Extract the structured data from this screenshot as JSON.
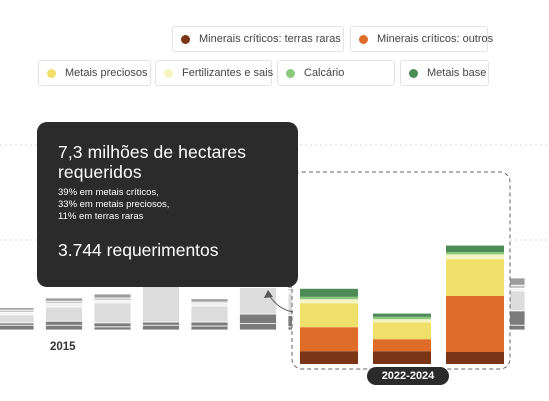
{
  "legend": {
    "items": [
      {
        "label": "Minerais críticos: terras raras",
        "color": "#7a3516"
      },
      {
        "label": "Minerais críticos: outros",
        "color": "#df6c28"
      },
      {
        "label": "Metais preciosos",
        "color": "#f0e06a"
      },
      {
        "label": "Fertilizantes e sais",
        "color": "#f5f4c2"
      },
      {
        "label": "Calcário",
        "color": "#8cc97e"
      },
      {
        "label": "Metais base",
        "color": "#4c8a56"
      }
    ]
  },
  "tooltip": {
    "area": "7,3 milhões de hectares requeridos",
    "breakdown": [
      "39% em metais críticos,",
      "33% em metais preciosos,",
      "11% em terras raras"
    ],
    "requests": "3.744 requerimentos"
  },
  "chart_data": {
    "type": "bar",
    "stacked": true,
    "tick_labels": [
      "2015"
    ],
    "highlight_label": "2022-2024",
    "series": [
      {
        "name": "Minerais críticos: terras raras",
        "color": "#7a3516",
        "values": [
          0.6,
          0.6,
          0.4,
          0.6,
          0.5,
          0.8,
          0.4,
          0.3,
          0.4,
          1.6,
          1.6,
          1.5,
          0.6
        ]
      },
      {
        "name": "Minerais críticos: outros",
        "color": "#df6c28",
        "values": [
          0.3,
          0.5,
          0.5,
          0.4,
          0.5,
          1.2,
          1.4,
          1.5,
          1.8,
          3.0,
          1.5,
          7.0,
          1.8
        ]
      },
      {
        "name": "Metais preciosos",
        "color": "#f0e06a",
        "values": [
          1.0,
          1.8,
          2.5,
          4.5,
          2.0,
          3.3,
          2.8,
          2.5,
          3.0,
          3.0,
          2.1,
          4.6,
          2.5
        ]
      },
      {
        "name": "Fertilizantes e sais",
        "color": "#f5f4c2",
        "values": [
          0.3,
          0.4,
          0.3,
          0.3,
          0.3,
          0.4,
          0.3,
          0.3,
          0.4,
          0.5,
          0.4,
          0.6,
          0.3
        ]
      },
      {
        "name": "Calcário",
        "color": "#8cc97e",
        "values": [
          0.3,
          0.3,
          0.3,
          0.3,
          0.2,
          0.4,
          0.3,
          0.4,
          0.5,
          0.3,
          0.3,
          0.3,
          0.4
        ]
      },
      {
        "name": "Metais base",
        "color": "#4c8a56",
        "values": [
          0.3,
          0.4,
          0.5,
          0.6,
          0.4,
          0.7,
          0.6,
          0.8,
          0.9,
          1.0,
          0.4,
          0.8,
          0.9
        ]
      }
    ]
  }
}
